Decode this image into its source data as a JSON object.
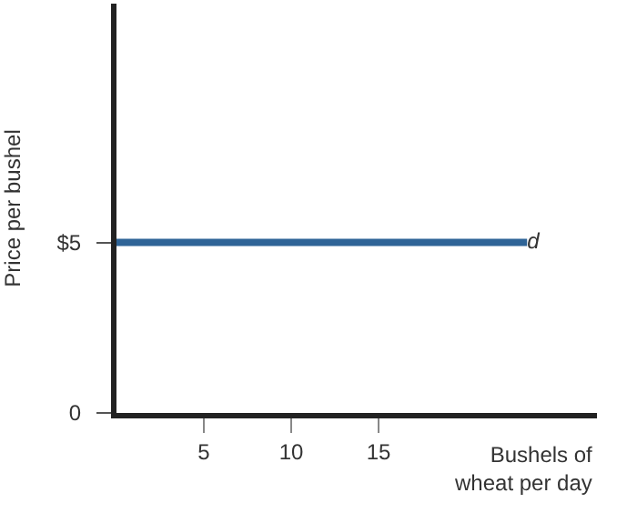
{
  "chart_data": {
    "type": "line",
    "xlabel": "Bushels of\nwheat per day",
    "ylabel": "Price per bushel",
    "x": [
      0,
      23.5
    ],
    "series": [
      {
        "name": "d",
        "color": "#2f6497",
        "values": [
          5,
          5
        ]
      }
    ],
    "xlim": [
      0,
      27.5
    ],
    "ylim": [
      0,
      12
    ],
    "xticks": [
      5,
      10,
      15
    ],
    "yticks": [
      {
        "value": 0,
        "label": "0"
      },
      {
        "value": 5,
        "label": "$5"
      }
    ],
    "legend": false,
    "marker": "none",
    "line_style": "solid"
  }
}
